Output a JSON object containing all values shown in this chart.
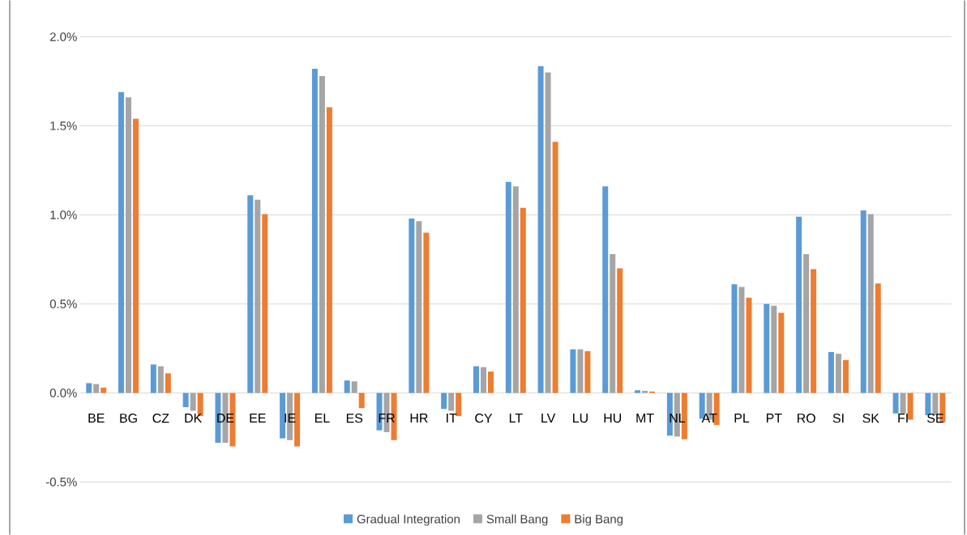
{
  "chart_data": {
    "type": "bar",
    "categories": [
      "BE",
      "BG",
      "CZ",
      "DK",
      "DE",
      "EE",
      "IE",
      "EL",
      "ES",
      "FR",
      "HR",
      "IT",
      "CY",
      "LT",
      "LV",
      "LU",
      "HU",
      "MT",
      "NL",
      "AT",
      "PL",
      "PT",
      "RO",
      "SI",
      "SK",
      "FI",
      "SE"
    ],
    "series": [
      {
        "name": "Gradual Integration",
        "color": "#5b9bd5",
        "values": [
          0.055,
          1.69,
          0.16,
          -0.08,
          -0.28,
          1.11,
          -0.255,
          1.82,
          0.07,
          -0.21,
          0.98,
          -0.09,
          0.15,
          1.185,
          1.835,
          0.245,
          1.16,
          0.015,
          -0.24,
          -0.145,
          0.61,
          0.5,
          0.99,
          0.23,
          1.025,
          -0.115,
          -0.125
        ]
      },
      {
        "name": "Small Bang",
        "color": "#a5a5a5",
        "values": [
          0.05,
          1.66,
          0.15,
          -0.1,
          -0.28,
          1.085,
          -0.265,
          1.78,
          0.065,
          -0.22,
          0.965,
          -0.1,
          0.145,
          1.16,
          1.8,
          0.245,
          0.78,
          0.012,
          -0.245,
          -0.15,
          0.595,
          0.49,
          0.78,
          0.22,
          1.005,
          -0.115,
          -0.125
        ]
      },
      {
        "name": "Big Bang",
        "color": "#ed7d31",
        "values": [
          0.03,
          1.54,
          0.11,
          -0.13,
          -0.3,
          1.005,
          -0.3,
          1.605,
          -0.085,
          -0.265,
          0.9,
          -0.13,
          0.12,
          1.04,
          1.41,
          0.235,
          0.7,
          0.008,
          -0.26,
          -0.18,
          0.535,
          0.45,
          0.695,
          0.185,
          0.615,
          -0.15,
          -0.165
        ]
      }
    ],
    "ylim": [
      -0.5,
      2.0
    ],
    "yticks": [
      {
        "value": -0.5,
        "label": "-0.5%"
      },
      {
        "value": 0.0,
        "label": "0.0%"
      },
      {
        "value": 0.5,
        "label": "0.5%"
      },
      {
        "value": 1.0,
        "label": "1.0%"
      },
      {
        "value": 1.5,
        "label": "1.5%"
      },
      {
        "value": 2.0,
        "label": "2.0%"
      }
    ],
    "grid": "y",
    "legend": "bottom"
  }
}
